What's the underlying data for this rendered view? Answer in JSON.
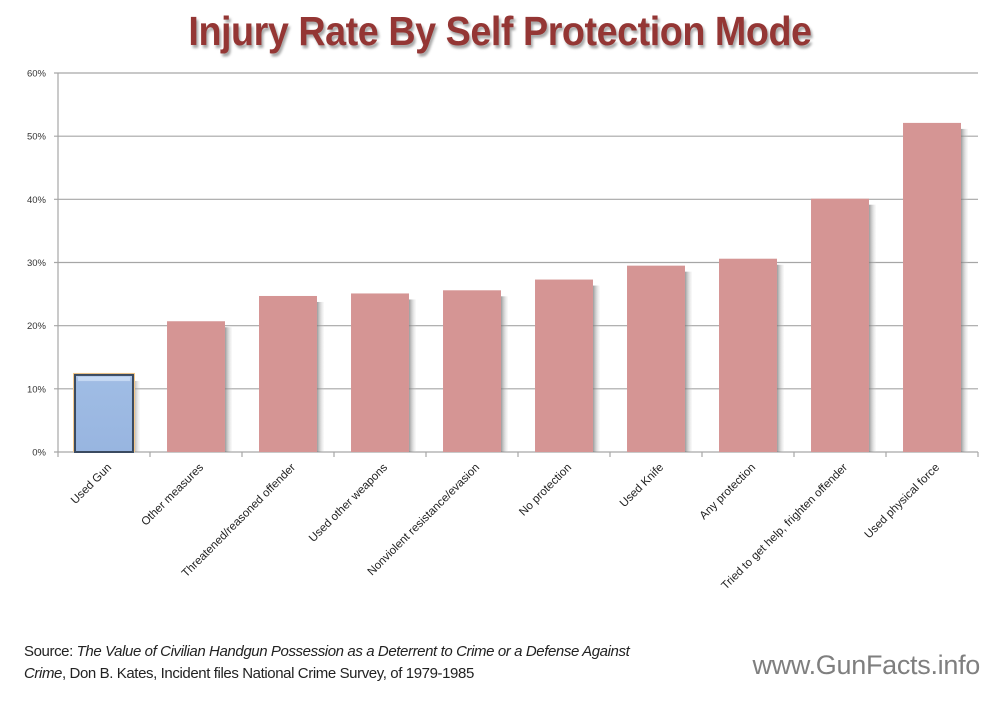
{
  "chart_data": {
    "type": "bar",
    "title": "Injury Rate By Self Protection Mode",
    "xlabel": "",
    "ylabel": "",
    "ylim": [
      0,
      60
    ],
    "yticks": [
      "0%",
      "10%",
      "20%",
      "30%",
      "40%",
      "50%",
      "60%"
    ],
    "ytick_values": [
      0,
      10,
      20,
      30,
      40,
      50,
      60
    ],
    "grid": true,
    "legend": "none",
    "categories": [
      "Used Gun",
      "Other measures",
      "Threatened/reasoned offender",
      "Used other weapons",
      "Nonviolent resistance/evasion",
      "No protection",
      "Used Knife",
      "Any protection",
      "Tried to get help, frighten offender",
      "Used physical force"
    ],
    "values": [
      12.2,
      20.7,
      24.7,
      25.1,
      25.6,
      27.3,
      29.5,
      30.6,
      40.1,
      52.1
    ],
    "unit": "%",
    "colors": {
      "highlight": "#9dbbe3",
      "highlight_border": "#f5c98a",
      "default": "#d59594",
      "grid": "#a6a6a6",
      "title": "#943634"
    },
    "highlight_index": 0
  },
  "source": {
    "prefix": "Source: ",
    "italic_title_line1": "The Value of Civilian Handgun Possession as a Deterrent to Crime or a Defense Against",
    "italic_title_line2": "Crime",
    "rest": ", Don B. Kates, Incident files National Crime Survey, of 1979-1985"
  },
  "site": "www.GunFacts.info"
}
